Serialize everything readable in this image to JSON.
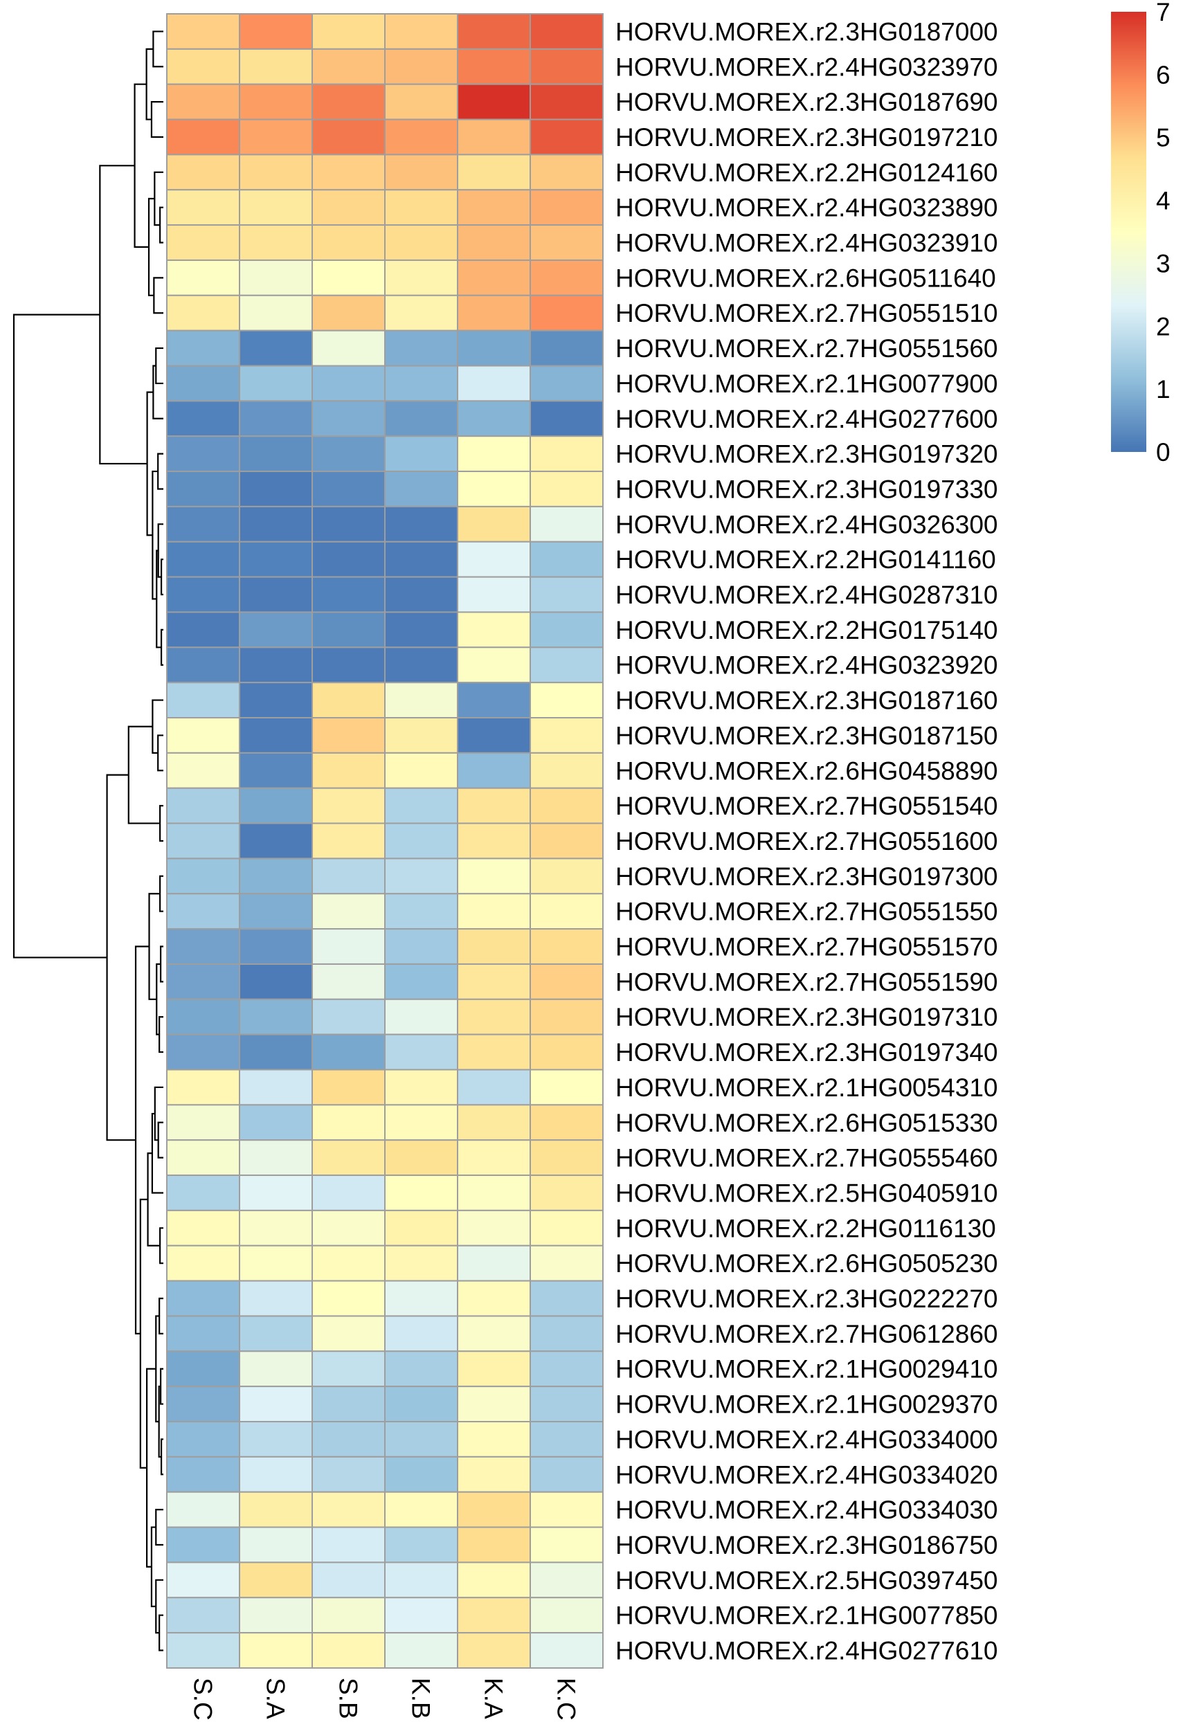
{
  "chart_data": {
    "type": "heatmap",
    "title": "",
    "columns": [
      "S.C",
      "S.A",
      "S.B",
      "K.B",
      "K.A",
      "K.C"
    ],
    "rows": [
      "HORVU.MOREX.r2.3HG0187000",
      "HORVU.MOREX.r2.4HG0323970",
      "HORVU.MOREX.r2.3HG0187690",
      "HORVU.MOREX.r2.3HG0197210",
      "HORVU.MOREX.r2.2HG0124160",
      "HORVU.MOREX.r2.4HG0323890",
      "HORVU.MOREX.r2.4HG0323910",
      "HORVU.MOREX.r2.6HG0511640",
      "HORVU.MOREX.r2.7HG0551510",
      "HORVU.MOREX.r2.7HG0551560",
      "HORVU.MOREX.r2.1HG0077900",
      "HORVU.MOREX.r2.4HG0277600",
      "HORVU.MOREX.r2.3HG0197320",
      "HORVU.MOREX.r2.3HG0197330",
      "HORVU.MOREX.r2.4HG0326300",
      "HORVU.MOREX.r2.2HG0141160",
      "HORVU.MOREX.r2.4HG0287310",
      "HORVU.MOREX.r2.2HG0175140",
      "HORVU.MOREX.r2.4HG0323920",
      "HORVU.MOREX.r2.3HG0187160",
      "HORVU.MOREX.r2.3HG0187150",
      "HORVU.MOREX.r2.6HG0458890",
      "HORVU.MOREX.r2.7HG0551540",
      "HORVU.MOREX.r2.7HG0551600",
      "HORVU.MOREX.r2.3HG0197300",
      "HORVU.MOREX.r2.7HG0551550",
      "HORVU.MOREX.r2.7HG0551570",
      "HORVU.MOREX.r2.7HG0551590",
      "HORVU.MOREX.r2.3HG0197310",
      "HORVU.MOREX.r2.3HG0197340",
      "HORVU.MOREX.r2.1HG0054310",
      "HORVU.MOREX.r2.6HG0515330",
      "HORVU.MOREX.r2.7HG0555460",
      "HORVU.MOREX.r2.5HG0405910",
      "HORVU.MOREX.r2.2HG0116130",
      "HORVU.MOREX.r2.6HG0505230",
      "HORVU.MOREX.r2.3HG0222270",
      "HORVU.MOREX.r2.7HG0612860",
      "HORVU.MOREX.r2.1HG0029410",
      "HORVU.MOREX.r2.1HG0029370",
      "HORVU.MOREX.r2.4HG0334000",
      "HORVU.MOREX.r2.4HG0334020",
      "HORVU.MOREX.r2.4HG0334030",
      "HORVU.MOREX.r2.3HG0186750",
      "HORVU.MOREX.r2.5HG0397450",
      "HORVU.MOREX.r2.1HG0077850",
      "HORVU.MOREX.r2.4HG0277610"
    ],
    "values": [
      [
        4.9,
        5.8,
        4.7,
        4.9,
        6.3,
        6.5
      ],
      [
        4.7,
        4.6,
        5.1,
        5.2,
        6.0,
        6.2
      ],
      [
        5.3,
        5.6,
        6.0,
        5.0,
        7.0,
        6.7
      ],
      [
        5.9,
        5.5,
        6.1,
        5.6,
        5.2,
        6.5
      ],
      [
        4.8,
        4.8,
        4.9,
        5.1,
        4.6,
        5.0
      ],
      [
        4.3,
        4.3,
        4.8,
        4.7,
        5.2,
        5.4
      ],
      [
        4.5,
        4.5,
        4.7,
        4.7,
        5.2,
        5.1
      ],
      [
        3.4,
        3.1,
        3.5,
        3.9,
        5.3,
        5.5
      ],
      [
        4.2,
        3.1,
        5.0,
        3.9,
        5.3,
        5.8
      ],
      [
        1.0,
        0.2,
        2.9,
        0.9,
        0.8,
        0.4
      ],
      [
        0.8,
        1.3,
        1.1,
        1.1,
        2.2,
        1.0
      ],
      [
        0.2,
        0.5,
        0.9,
        0.6,
        1.0,
        0.1
      ],
      [
        0.5,
        0.4,
        0.6,
        1.2,
        3.5,
        4.0
      ],
      [
        0.4,
        0.1,
        0.3,
        0.9,
        3.5,
        4.0
      ],
      [
        0.3,
        0.1,
        0.1,
        0.1,
        4.6,
        2.6
      ],
      [
        0.2,
        0.2,
        0.1,
        0.1,
        2.4,
        1.3
      ],
      [
        0.2,
        0.1,
        0.2,
        0.1,
        2.4,
        1.6
      ],
      [
        0.1,
        0.6,
        0.4,
        0.1,
        3.6,
        1.3
      ],
      [
        0.3,
        0.1,
        0.1,
        0.1,
        3.4,
        1.6
      ],
      [
        1.6,
        0.1,
        4.6,
        3.1,
        0.5,
        3.5
      ],
      [
        3.4,
        0.1,
        4.9,
        4.1,
        0.1,
        4.0
      ],
      [
        3.3,
        0.3,
        4.5,
        3.7,
        1.1,
        4.1
      ],
      [
        1.5,
        0.8,
        4.2,
        1.6,
        4.5,
        4.7
      ],
      [
        1.5,
        0.1,
        4.2,
        1.6,
        4.4,
        4.8
      ],
      [
        1.3,
        1.0,
        1.7,
        1.8,
        3.4,
        4.1
      ],
      [
        1.4,
        0.9,
        3.0,
        1.6,
        3.6,
        3.7
      ],
      [
        0.7,
        0.5,
        2.6,
        1.4,
        4.6,
        4.7
      ],
      [
        0.7,
        0.1,
        2.7,
        1.2,
        4.4,
        4.9
      ],
      [
        0.8,
        1.0,
        1.7,
        2.6,
        4.5,
        4.8
      ],
      [
        0.7,
        0.4,
        0.8,
        1.7,
        4.5,
        4.7
      ],
      [
        3.8,
        2.1,
        4.7,
        3.8,
        1.8,
        3.5
      ],
      [
        3.1,
        1.4,
        3.7,
        3.6,
        4.3,
        4.7
      ],
      [
        3.2,
        2.7,
        4.3,
        4.6,
        3.8,
        4.6
      ],
      [
        1.6,
        2.4,
        2.1,
        3.5,
        3.4,
        4.2
      ],
      [
        3.6,
        3.3,
        3.3,
        4.0,
        3.3,
        3.7
      ],
      [
        3.6,
        3.4,
        3.6,
        3.8,
        2.6,
        3.3
      ],
      [
        1.1,
        2.1,
        3.5,
        2.5,
        3.6,
        1.5
      ],
      [
        1.1,
        1.6,
        3.3,
        2.1,
        3.3,
        1.5
      ],
      [
        0.8,
        2.8,
        1.9,
        1.5,
        4.0,
        1.5
      ],
      [
        0.9,
        2.3,
        1.5,
        1.3,
        3.3,
        1.5
      ],
      [
        1.1,
        1.8,
        1.5,
        1.5,
        3.6,
        1.5
      ],
      [
        1.1,
        2.2,
        1.7,
        1.3,
        3.8,
        1.5
      ],
      [
        2.6,
        4.1,
        3.9,
        3.6,
        4.7,
        3.6
      ],
      [
        1.2,
        2.6,
        2.2,
        1.6,
        4.7,
        3.4
      ],
      [
        2.4,
        4.6,
        2.1,
        2.2,
        3.7,
        2.8
      ],
      [
        1.7,
        2.8,
        3.1,
        2.3,
        4.4,
        2.9
      ],
      [
        1.9,
        3.6,
        3.8,
        2.6,
        4.4,
        2.5
      ]
    ],
    "colorbar": {
      "min": 0,
      "max": 7,
      "ticks": [
        "0",
        "1",
        "2",
        "3",
        "4",
        "5",
        "6",
        "7"
      ],
      "colors": [
        "#4575b4",
        "#91bfdb",
        "#e0f3f8",
        "#ffffbf",
        "#fee090",
        "#fc8d59",
        "#d73027"
      ]
    },
    "cell_border_color": "#9e9e9e",
    "dendrogram": "rows",
    "legend_position": "right"
  }
}
